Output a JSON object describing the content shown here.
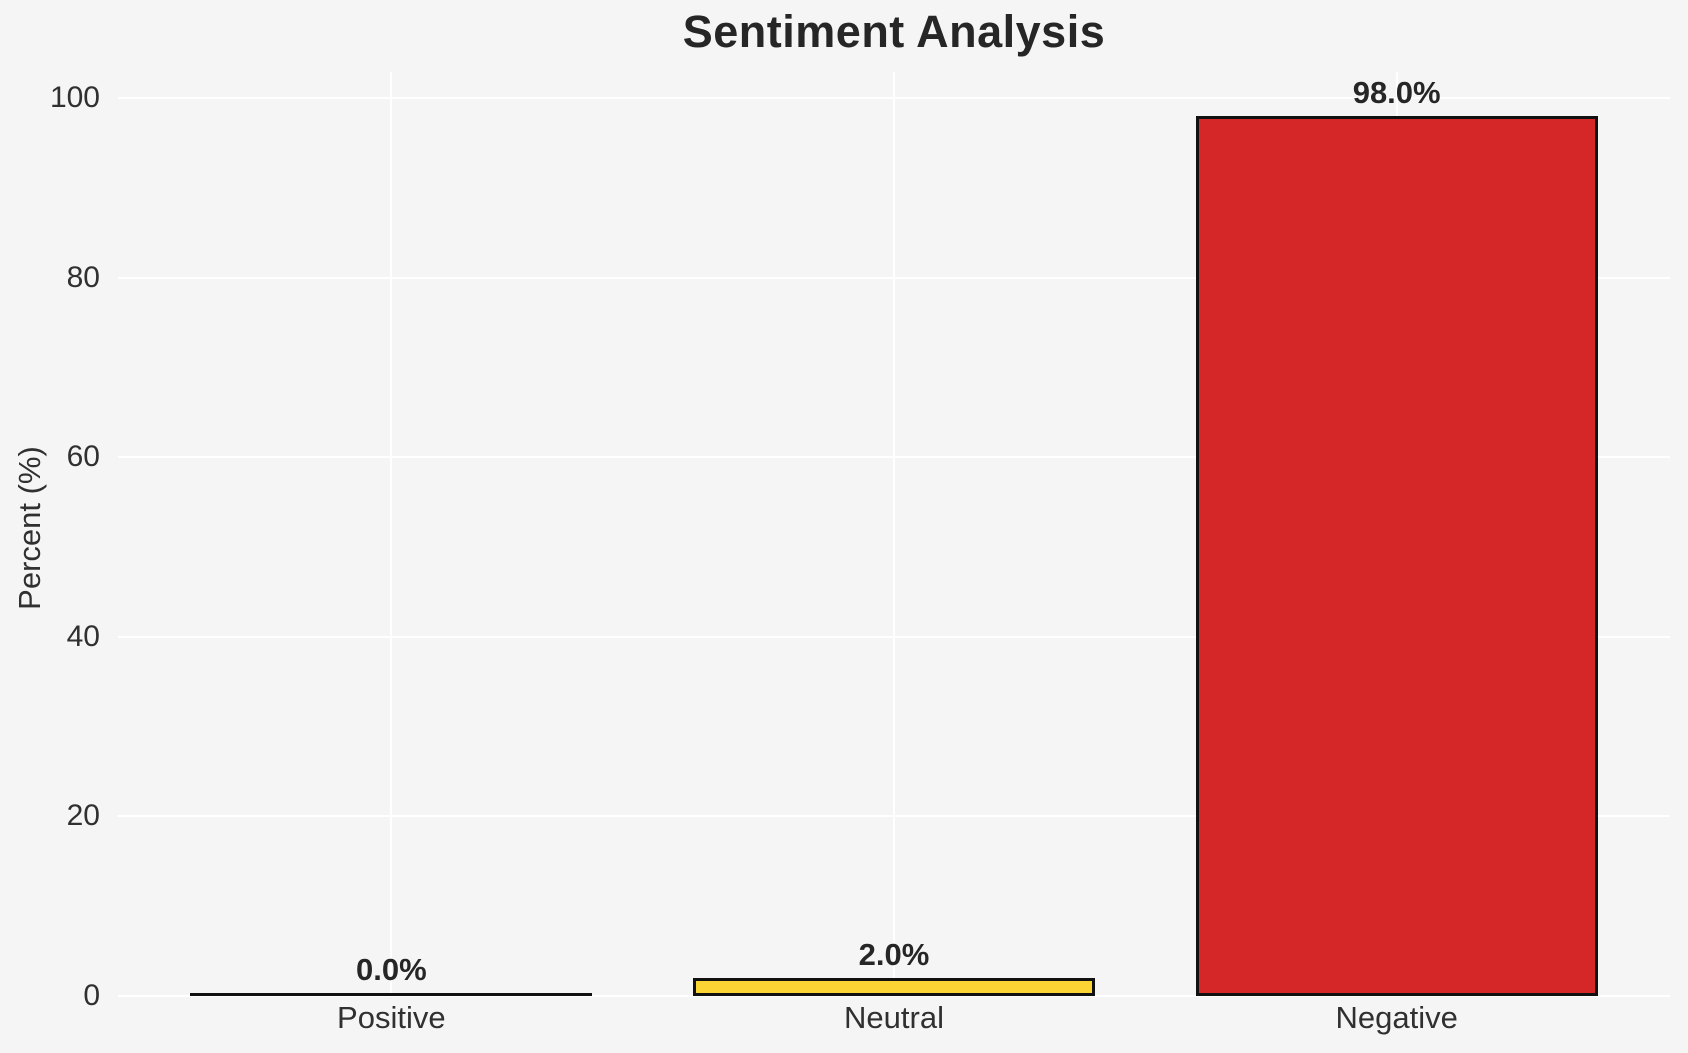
{
  "figure": {
    "background_color": "#f5f5f5",
    "text_color": "#262626"
  },
  "chart_data": {
    "type": "bar",
    "title": "Sentiment Analysis",
    "xlabel": "",
    "ylabel": "Percent (%)",
    "categories": [
      "Positive",
      "Neutral",
      "Negative"
    ],
    "values": [
      0.0,
      2.0,
      98.0
    ],
    "bar_labels": [
      "0.0%",
      "2.0%",
      "98.0%"
    ],
    "bar_colors": [
      "transparent",
      "#FCD535",
      "#D62728"
    ],
    "bar_edge_color": "#111111",
    "yticks": [
      0,
      20,
      40,
      60,
      80,
      100
    ],
    "ylim": [
      0,
      102.9
    ],
    "grid": "on",
    "grid_color": "#ffffff",
    "legend_position": "none"
  }
}
